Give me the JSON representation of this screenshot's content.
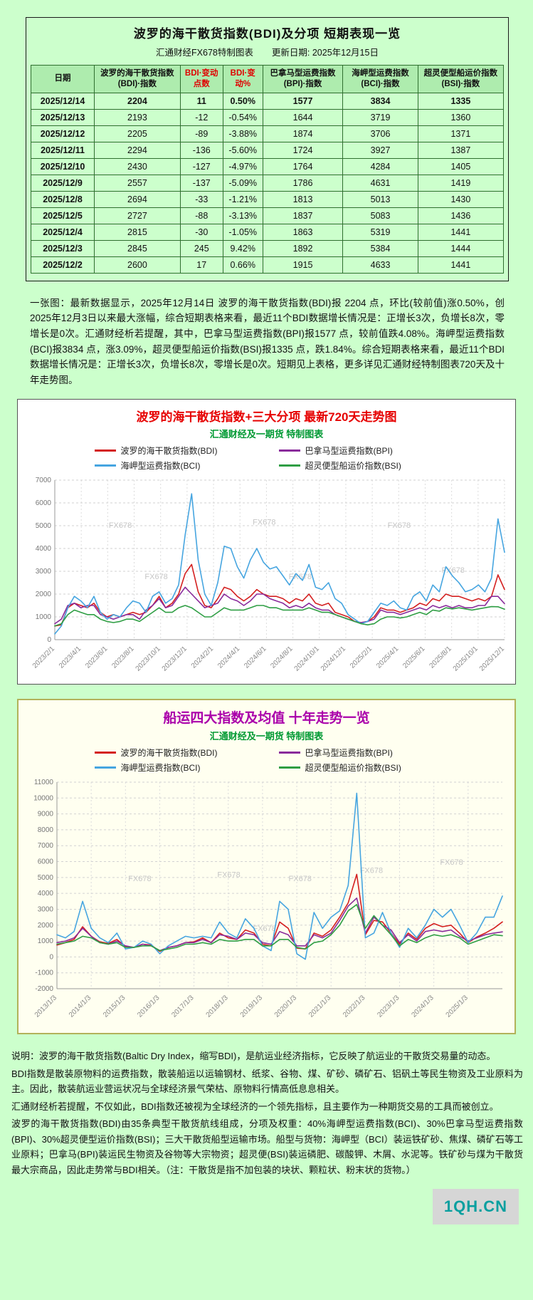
{
  "top": {
    "title": "波罗的海干散货指数(BDI)及分项 短期表现一览",
    "subtitle_left": "汇通财经FX678特制图表",
    "subtitle_right": "更新日期: 2025年12月15日",
    "table": {
      "headers": [
        "日期",
        "波罗的海干散货指数(BDI)·指数",
        "BDI·变动点数",
        "BDI·变动%",
        "巴拿马型运费指数(BPI)·指数",
        "海岬型运费指数(BCI)·指数",
        "超灵便型船运价指数(BSI)·指数"
      ],
      "red_header_indices": [
        2,
        3
      ],
      "rows": [
        [
          "2025/12/14",
          "2204",
          "11",
          "0.50%",
          "1577",
          "3834",
          "1335"
        ],
        [
          "2025/12/13",
          "2193",
          "-12",
          "-0.54%",
          "1644",
          "3719",
          "1360"
        ],
        [
          "2025/12/12",
          "2205",
          "-89",
          "-3.88%",
          "1874",
          "3706",
          "1371"
        ],
        [
          "2025/12/11",
          "2294",
          "-136",
          "-5.60%",
          "1724",
          "3927",
          "1387"
        ],
        [
          "2025/12/10",
          "2430",
          "-127",
          "-4.97%",
          "1764",
          "4284",
          "1405"
        ],
        [
          "2025/12/9",
          "2557",
          "-137",
          "-5.09%",
          "1786",
          "4631",
          "1419"
        ],
        [
          "2025/12/8",
          "2694",
          "-33",
          "-1.21%",
          "1813",
          "5013",
          "1430"
        ],
        [
          "2025/12/5",
          "2727",
          "-88",
          "-3.13%",
          "1837",
          "5083",
          "1436"
        ],
        [
          "2025/12/4",
          "2815",
          "-30",
          "-1.05%",
          "1863",
          "5319",
          "1441"
        ],
        [
          "2025/12/3",
          "2845",
          "245",
          "9.42%",
          "1892",
          "5384",
          "1444"
        ],
        [
          "2025/12/2",
          "2600",
          "17",
          "0.66%",
          "1915",
          "4633",
          "1441"
        ]
      ]
    },
    "summary": "一张图：最新数据显示，2025年12月14日 波罗的海干散货指数(BDI)报 2204 点，环比(较前值)涨0.50%，创2025年12月3日以来最大涨幅，综合短期表格来看，最近11个BDI数据增长情况是：正增长3次，负增长8次，零增长是0次。汇通财经析若提醒，其中，巴拿马型运费指数(BPI)报1577 点，较前值跌4.08%。海岬型运费指数(BCI)报3834 点，涨3.09%，超灵便型船运价指数(BSI)报1335 点，跌1.84%。综合短期表格来看，最近11个BDI数据增长情况是：正增长3次，负增长8次，零增长是0次。短期见上表格，更多详见汇通财经特制图表720天及十年走势图。"
  },
  "chart_data": [
    {
      "type": "line",
      "title": "波罗的海干散货指数+三大分项 最新720天走势图",
      "subtitle": "汇通财经及一期货 特制图表",
      "xlabel": "",
      "ylabel": "",
      "grid": true,
      "legend_position": "top",
      "watermark_text": "FX678",
      "ylim": [
        0,
        7000
      ],
      "ystep": 1000,
      "xlabels": [
        "2023/2/1",
        "2023/4/1",
        "2023/6/1",
        "2023/8/1",
        "2023/10/1",
        "2023/12/1",
        "2024/2/1",
        "2024/4/1",
        "2024/6/1",
        "2024/8/1",
        "2024/10/1",
        "2024/12/1",
        "2025/2/1",
        "2025/4/1",
        "2025/6/1",
        "2025/8/1",
        "2025/10/1",
        "2025/12/1"
      ],
      "xlabel_end_frac": 1.0,
      "watermarks": [
        [
          0.12,
          0.3
        ],
        [
          0.2,
          0.62
        ],
        [
          0.44,
          0.28
        ],
        [
          0.52,
          0.62
        ],
        [
          0.74,
          0.3
        ],
        [
          0.86,
          0.58
        ]
      ],
      "series": [
        {
          "name": "波罗的海干散货指数(BDI)",
          "color": "#d42020",
          "values": [
            600,
            650,
            1400,
            1600,
            1500,
            1400,
            1600,
            1200,
            1000,
            1100,
            1000,
            1100,
            1200,
            1100,
            1200,
            1500,
            1900,
            1400,
            1600,
            2000,
            2900,
            3300,
            2100,
            1500,
            1400,
            1800,
            2300,
            2200,
            1900,
            1700,
            1900,
            2200,
            2000,
            1900,
            1900,
            1800,
            1600,
            1800,
            1700,
            2000,
            1600,
            1500,
            1600,
            1200,
            1100,
            1000,
            800,
            750,
            800,
            1000,
            1400,
            1300,
            1300,
            1200,
            1300,
            1400,
            1600,
            1500,
            1800,
            1700,
            2000,
            1900,
            1900,
            1800,
            1700,
            1800,
            1700,
            1900,
            2845,
            2204
          ]
        },
        {
          "name": "巴拿马型运费指数(BPI)",
          "color": "#8a2b9b",
          "values": [
            700,
            900,
            1500,
            1600,
            1400,
            1500,
            1500,
            1100,
            1000,
            900,
            1000,
            1100,
            1100,
            900,
            1300,
            1500,
            1800,
            1400,
            1500,
            1900,
            2300,
            2000,
            1700,
            1400,
            1500,
            1600,
            2000,
            1800,
            1700,
            1500,
            1700,
            2000,
            2000,
            1800,
            1700,
            1600,
            1400,
            1500,
            1400,
            1600,
            1400,
            1300,
            1300,
            1100,
            1000,
            900,
            800,
            750,
            800,
            900,
            1300,
            1200,
            1200,
            1100,
            1200,
            1300,
            1400,
            1300,
            1500,
            1400,
            1500,
            1400,
            1500,
            1400,
            1400,
            1500,
            1500,
            1900,
            1900,
            1577
          ]
        },
        {
          "name": "海岬型运费指数(BCI)",
          "color": "#46a5e0",
          "values": [
            250,
            600,
            1400,
            1900,
            1700,
            1400,
            1900,
            1200,
            900,
            1100,
            1000,
            1400,
            1700,
            1600,
            1200,
            1900,
            2100,
            1600,
            1800,
            2400,
            4600,
            6400,
            3500,
            2000,
            1500,
            2500,
            4100,
            4000,
            3200,
            2700,
            3500,
            4000,
            3400,
            3100,
            3200,
            2800,
            2400,
            2900,
            2600,
            3300,
            2300,
            2200,
            2500,
            1800,
            1600,
            1100,
            900,
            700,
            800,
            1200,
            1600,
            1500,
            1700,
            1400,
            1300,
            1900,
            2100,
            1700,
            2400,
            2100,
            3200,
            2800,
            2500,
            2100,
            2200,
            2400,
            2100,
            2700,
            5300,
            3834
          ]
        },
        {
          "name": "超灵便型船运价指数(BSI)",
          "color": "#2f9e44",
          "values": [
            600,
            700,
            1100,
            1300,
            1200,
            1100,
            1100,
            900,
            800,
            750,
            800,
            900,
            900,
            800,
            1000,
            1200,
            1400,
            1200,
            1200,
            1400,
            1500,
            1400,
            1200,
            1000,
            1000,
            1200,
            1400,
            1300,
            1300,
            1300,
            1400,
            1500,
            1500,
            1400,
            1400,
            1300,
            1300,
            1300,
            1300,
            1400,
            1300,
            1200,
            1200,
            1100,
            1000,
            900,
            800,
            700,
            650,
            700,
            900,
            1000,
            1000,
            950,
            1000,
            1100,
            1200,
            1100,
            1300,
            1250,
            1400,
            1350,
            1400,
            1350,
            1300,
            1350,
            1400,
            1450,
            1444,
            1335
          ]
        }
      ]
    },
    {
      "type": "line",
      "title": "船运四大指数及均值 十年走势一览",
      "subtitle": "汇通财经及一期货 特制图表",
      "xlabel": "",
      "ylabel": "",
      "grid": true,
      "legend_position": "top",
      "watermark_text": "FX678",
      "ylim": [
        -2000,
        11000
      ],
      "ystep": 1000,
      "xlabels": [
        "2013/1/3",
        "2014/1/3",
        "2015/1/3",
        "2016/1/3",
        "2017/1/3",
        "2018/1/3",
        "2019/1/3",
        "2020/1/3",
        "2021/1/3",
        "2022/1/3",
        "2023/1/3",
        "2024/1/3",
        "2025/1/3"
      ],
      "xlabel_end_frac": 0.923,
      "watermarks": [
        [
          0.16,
          0.48
        ],
        [
          0.36,
          0.46
        ],
        [
          0.52,
          0.48
        ],
        [
          0.68,
          0.44
        ],
        [
          0.86,
          0.4
        ],
        [
          0.44,
          0.72
        ]
      ],
      "series": [
        {
          "name": "波罗的海干散货指数(BDI)",
          "color": "#d42020",
          "values": [
            750,
            900,
            1100,
            1900,
            1300,
            950,
            850,
            1100,
            650,
            600,
            800,
            750,
            350,
            600,
            700,
            900,
            950,
            1200,
            900,
            1500,
            1200,
            1100,
            1700,
            1500,
            800,
            700,
            2200,
            1800,
            550,
            500,
            1500,
            1300,
            1700,
            2500,
            3400,
            5200,
            1400,
            2300,
            2200,
            1500,
            800,
            1500,
            1100,
            1800,
            2100,
            1900,
            2000,
            1500,
            900,
            1250,
            1500,
            1800,
            2204
          ]
        },
        {
          "name": "巴拿马型运费指数(BPI)",
          "color": "#8a2b9b",
          "values": [
            900,
            1000,
            1200,
            1800,
            1300,
            900,
            800,
            1000,
            700,
            600,
            800,
            700,
            400,
            600,
            700,
            900,
            900,
            1100,
            900,
            1400,
            1300,
            1100,
            1500,
            1400,
            900,
            800,
            1600,
            1400,
            700,
            700,
            1400,
            1200,
            1500,
            2300,
            3200,
            3700,
            1500,
            2500,
            2000,
            1700,
            900,
            1400,
            1000,
            1600,
            1700,
            1600,
            1700,
            1300,
            1000,
            1200,
            1400,
            1500,
            1577
          ]
        },
        {
          "name": "海岬型运费指数(BCI)",
          "color": "#46a5e0",
          "values": [
            1400,
            1200,
            1600,
            3500,
            1800,
            1200,
            900,
            1500,
            500,
            600,
            1000,
            800,
            200,
            700,
            1000,
            1300,
            1200,
            1300,
            1200,
            2200,
            1500,
            1200,
            2400,
            1800,
            700,
            400,
            3500,
            3000,
            200,
            -150,
            2800,
            1800,
            2500,
            2900,
            4500,
            10300,
            1200,
            1500,
            2800,
            1500,
            600,
            1800,
            1200,
            2000,
            3000,
            2500,
            3000,
            2000,
            900,
            1500,
            2500,
            2500,
            3834
          ]
        },
        {
          "name": "超灵便型船运价指数(BSI)",
          "color": "#2f9e44",
          "values": [
            800,
            900,
            1000,
            1300,
            1200,
            900,
            800,
            900,
            600,
            600,
            700,
            700,
            400,
            500,
            600,
            800,
            800,
            900,
            800,
            1100,
            1000,
            1000,
            1100,
            1100,
            700,
            700,
            1100,
            1100,
            600,
            500,
            900,
            1000,
            1400,
            2000,
            2900,
            3300,
            1800,
            2600,
            2000,
            1400,
            700,
            1100,
            900,
            1200,
            1400,
            1300,
            1400,
            1200,
            800,
            1000,
            1200,
            1400,
            1335
          ]
        }
      ]
    }
  ],
  "footer": {
    "paragraphs": [
      "说明：波罗的海干散货指数(Baltic Dry Index，缩写BDI)，是航运业经济指标，它反映了航运业的干散货交易量的动态。",
      "BDI指数是散装原物料的运费指数，散装船运以运输钢材、纸浆、谷物、煤、矿砂、磷矿石、铝矾土等民生物资及工业原料为主。因此，散装航运业营运状况与全球经济景气荣枯、原物料行情高低息息相关。",
      "汇通财经析若提醒，不仅如此，BDI指数还被视为全球经济的一个领先指标，且主要作为一种期货交易的工具而被创立。",
      "波罗的海干散货指数(BDI)由35条典型干散货航线组成，分项及权重：40%海岬型运费指数(BCI)、30%巴拿马型运费指数(BPI)、30%超灵便型运价指数(BSI)；三大干散货船型运输市场。船型与货物：海岬型（BCI）装运铁矿砂、焦煤、磷矿石等工业原料；巴拿马(BPI)装运民生物资及谷物等大宗物资；超灵便(BSI)装运磷肥、碳酸钾、木屑、水泥等。铁矿砂与煤为干散货最大宗商品，因此走势常与BDI相关。（注：干散货是指不加包装的块状、颗粒状、粉末状的货物。）"
    ],
    "logo": "1QH.CN"
  }
}
